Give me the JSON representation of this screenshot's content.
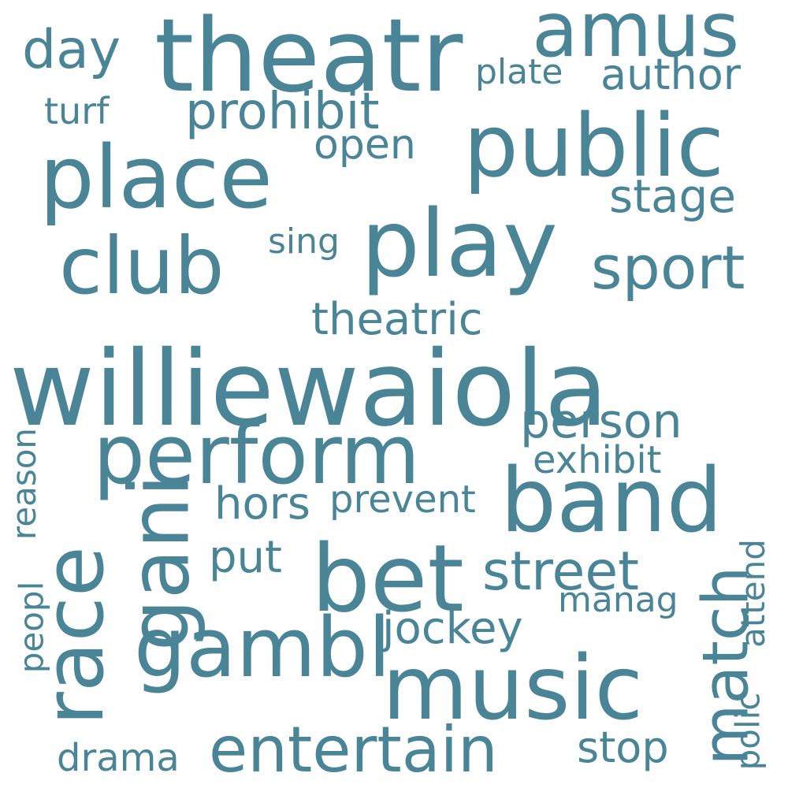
{
  "word_color": "#4a8497",
  "background_color": "#ffffff",
  "words": [
    {
      "id": "williewaiola",
      "text": "williewaiola"
    },
    {
      "id": "theatr",
      "text": "theatr"
    },
    {
      "id": "public",
      "text": "public"
    },
    {
      "id": "place",
      "text": "place"
    },
    {
      "id": "play",
      "text": "play"
    },
    {
      "id": "perform",
      "text": "perform"
    },
    {
      "id": "band",
      "text": "band"
    },
    {
      "id": "bet",
      "text": "bet"
    },
    {
      "id": "music",
      "text": "music"
    },
    {
      "id": "race",
      "text": "race"
    },
    {
      "id": "gani",
      "text": "gani"
    },
    {
      "id": "club",
      "text": "club"
    },
    {
      "id": "gambl",
      "text": "gambl"
    },
    {
      "id": "amus",
      "text": "amus"
    },
    {
      "id": "entertain",
      "text": "entertain"
    },
    {
      "id": "sport",
      "text": "sport"
    },
    {
      "id": "street",
      "text": "street"
    },
    {
      "id": "match",
      "text": "match"
    },
    {
      "id": "prohibit",
      "text": "prohibit"
    },
    {
      "id": "day",
      "text": "day"
    },
    {
      "id": "person",
      "text": "person"
    },
    {
      "id": "stage",
      "text": "stage"
    },
    {
      "id": "theatric",
      "text": "theatric"
    },
    {
      "id": "jockey",
      "text": "jockey"
    },
    {
      "id": "author",
      "text": "author"
    },
    {
      "id": "open",
      "text": "open"
    },
    {
      "id": "hors",
      "text": "hors"
    },
    {
      "id": "put",
      "text": "put"
    },
    {
      "id": "stop",
      "text": "stop"
    },
    {
      "id": "prevent",
      "text": "prevent"
    },
    {
      "id": "exhibit",
      "text": "exhibit"
    },
    {
      "id": "drama",
      "text": "drama"
    },
    {
      "id": "turf",
      "text": "turf"
    },
    {
      "id": "plate",
      "text": "plate"
    },
    {
      "id": "sing",
      "text": "sing"
    },
    {
      "id": "manag",
      "text": "manag"
    },
    {
      "id": "reason",
      "text": "reason"
    },
    {
      "id": "peopl",
      "text": "peopl"
    },
    {
      "id": "polic",
      "text": "polic"
    },
    {
      "id": "attend",
      "text": "attend"
    }
  ]
}
